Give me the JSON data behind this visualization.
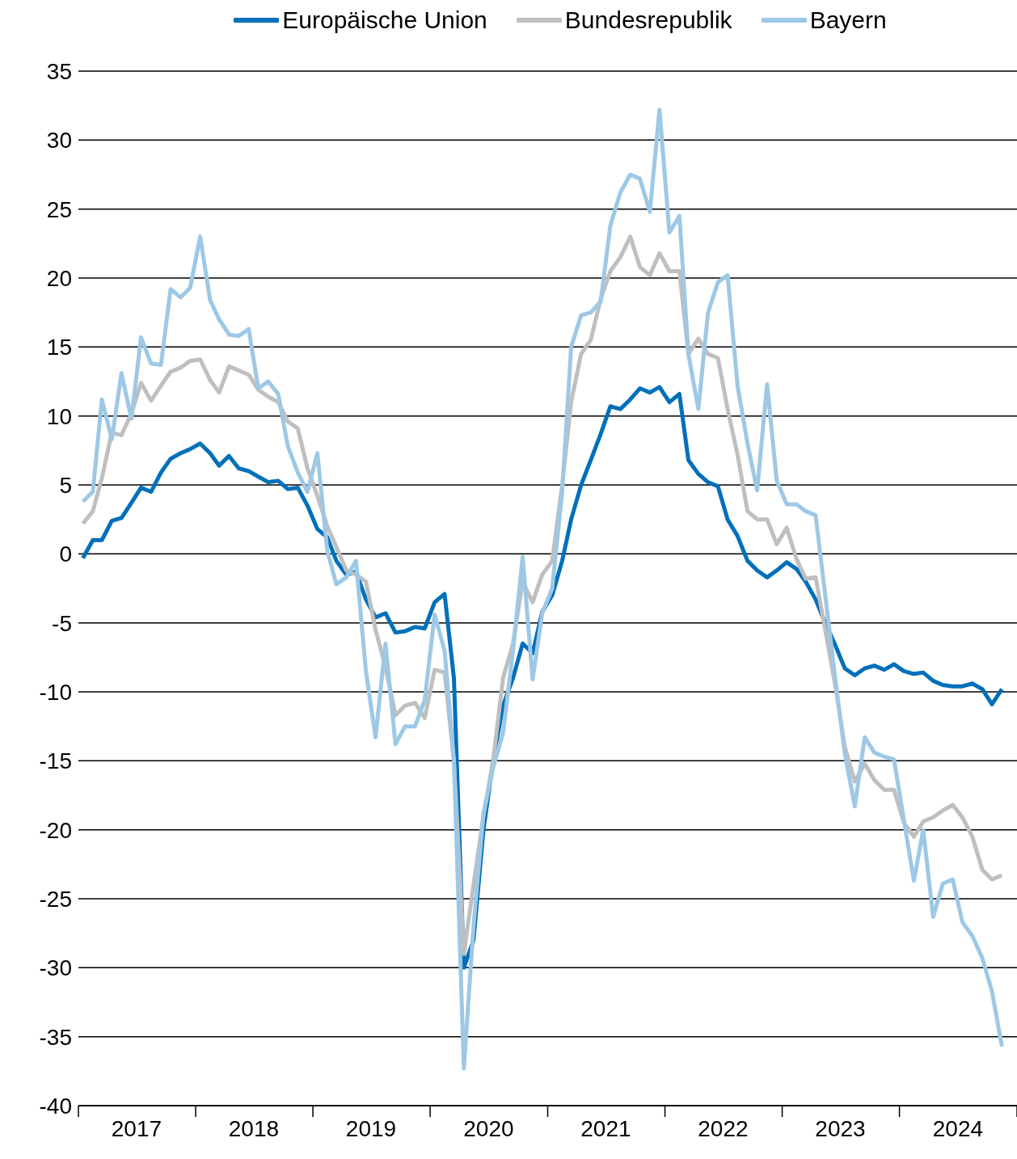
{
  "chart_data": {
    "type": "line",
    "legend": "top",
    "grid": "y",
    "marker": "none",
    "line_style": "solid",
    "x": [
      "2017-01-15",
      "2017-02-15",
      "2017-03-15",
      "2017-04-15",
      "2017-05-15",
      "2017-06-15",
      "2017-07-15",
      "2017-08-15",
      "2017-09-15",
      "2017-10-15",
      "2017-11-15",
      "2017-12-15",
      "2018-01-15",
      "2018-02-15",
      "2018-03-15",
      "2018-04-15",
      "2018-05-15",
      "2018-06-15",
      "2018-07-15",
      "2018-08-15",
      "2018-09-15",
      "2018-10-15",
      "2018-11-15",
      "2018-12-15",
      "2019-01-15",
      "2019-02-15",
      "2019-03-15",
      "2019-04-15",
      "2019-05-15",
      "2019-06-15",
      "2019-07-15",
      "2019-08-15",
      "2019-09-15",
      "2019-10-15",
      "2019-11-15",
      "2019-12-15",
      "2020-01-15",
      "2020-02-15",
      "2020-03-15",
      "2020-04-15",
      "2020-05-15",
      "2020-06-15",
      "2020-07-15",
      "2020-08-15",
      "2020-09-15",
      "2020-10-15",
      "2020-11-15",
      "2020-12-15",
      "2021-01-15",
      "2021-02-15",
      "2021-03-15",
      "2021-04-15",
      "2021-05-15",
      "2021-06-15",
      "2021-07-15",
      "2021-08-15",
      "2021-09-15",
      "2021-10-15",
      "2021-11-15",
      "2021-12-15",
      "2022-01-15",
      "2022-02-15",
      "2022-03-15",
      "2022-04-15",
      "2022-05-15",
      "2022-06-15",
      "2022-07-15",
      "2022-08-15",
      "2022-09-15",
      "2022-10-15",
      "2022-11-15",
      "2022-12-15",
      "2023-01-15",
      "2023-02-15",
      "2023-03-15",
      "2023-04-15",
      "2023-05-15",
      "2023-06-15",
      "2023-07-15",
      "2023-08-15",
      "2023-09-15",
      "2023-10-15",
      "2023-11-15",
      "2023-12-15",
      "2024-01-15",
      "2024-02-15",
      "2024-03-15",
      "2024-04-15",
      "2024-05-15",
      "2024-06-15",
      "2024-07-15",
      "2024-08-15",
      "2024-09-15",
      "2024-10-15",
      "2024-11-15"
    ],
    "xlim": [
      "2017-01-01",
      "2025-01-01"
    ],
    "xticks": [
      {
        "value": "2017-01-01",
        "label": null
      },
      {
        "value": "2017-07-01",
        "label": "2017"
      },
      {
        "value": "2018-01-01",
        "label": null
      },
      {
        "value": "2018-07-01",
        "label": "2018"
      },
      {
        "value": "2019-01-01",
        "label": null
      },
      {
        "value": "2019-07-01",
        "label": "2019"
      },
      {
        "value": "2020-01-01",
        "label": null
      },
      {
        "value": "2020-07-01",
        "label": "2020"
      },
      {
        "value": "2021-01-01",
        "label": null
      },
      {
        "value": "2021-07-01",
        "label": "2021"
      },
      {
        "value": "2022-01-01",
        "label": null
      },
      {
        "value": "2022-07-01",
        "label": "2022"
      },
      {
        "value": "2023-01-01",
        "label": null
      },
      {
        "value": "2023-07-01",
        "label": "2023"
      },
      {
        "value": "2024-01-01",
        "label": null
      },
      {
        "value": "2024-07-01",
        "label": "2024"
      },
      {
        "value": "2025-01-01",
        "label": null
      }
    ],
    "ylim": [
      -40,
      35
    ],
    "yticks": [
      -40,
      -35,
      -30,
      -25,
      -20,
      -15,
      -10,
      -5,
      0,
      5,
      10,
      15,
      20,
      25,
      30,
      35
    ],
    "series": [
      {
        "name": "Europäische Union",
        "color": "#0070ba",
        "values": [
          -0.3,
          1.0,
          1.0,
          2.4,
          2.6,
          3.7,
          4.8,
          4.5,
          5.9,
          6.9,
          7.3,
          7.6,
          8.0,
          7.3,
          6.4,
          7.1,
          6.2,
          6.0,
          5.6,
          5.2,
          5.3,
          4.7,
          4.8,
          3.5,
          1.8,
          1.2,
          -0.5,
          -1.5,
          -1.3,
          -3.3,
          -4.6,
          -4.3,
          -5.7,
          -5.6,
          -5.3,
          -5.4,
          -3.5,
          -2.9,
          -9.0,
          -30,
          -28,
          -20,
          -15,
          -11,
          -9,
          -6.5,
          -7.2,
          -4.2,
          -3,
          -0.5,
          2.5,
          5.0,
          6.8,
          8.7,
          10.7,
          10.5,
          11.2,
          12.0,
          11.7,
          12.1,
          11.0,
          11.6,
          6.8,
          5.8,
          5.2,
          4.9,
          2.5,
          1.3,
          -0.5,
          -1.2,
          -1.7,
          -1.2,
          -0.6,
          -1.1,
          -2.0,
          -3.3,
          -5,
          -6.6,
          -8.3,
          -8.8,
          -8.3,
          -8.1,
          -8.4,
          -8.0,
          -8.5,
          -8.7,
          -8.6,
          -9.2,
          -9.5,
          -9.6,
          -9.6,
          -9.4,
          -9.8,
          -10.9,
          -9.8
        ]
      },
      {
        "name": "Bundesrepublik",
        "color": "#bfbfbf",
        "values": [
          2.2,
          3.1,
          5.5,
          8.8,
          8.6,
          10.2,
          12.4,
          11.1,
          12.2,
          13.2,
          13.5,
          14.0,
          14.1,
          12.6,
          11.7,
          13.6,
          13.3,
          13.0,
          11.9,
          11.4,
          11.0,
          9.6,
          9.1,
          6.2,
          4.2,
          2.0,
          0.5,
          -1.2,
          -1.5,
          -2,
          -5.5,
          -8.2,
          -11.7,
          -11.0,
          -10.8,
          -11.9,
          -8.4,
          -8.6,
          -15,
          -29,
          -24,
          -19,
          -15,
          -9,
          -6.5,
          -2,
          -3.5,
          -1.5,
          -0.5,
          5,
          11,
          14.5,
          15.5,
          18.5,
          20.5,
          21.5,
          23.0,
          20.8,
          20.2,
          21.8,
          20.5,
          20.5,
          14.5,
          15.6,
          14.5,
          14.2,
          10.5,
          7.2,
          3.1,
          2.5,
          2.5,
          0.7,
          1.9,
          -0.4,
          -1.8,
          -1.7,
          -5.5,
          -9.5,
          -14,
          -16.5,
          -15.2,
          -16.4,
          -17.1,
          -17.1,
          -19.5,
          -20.5,
          -19.4,
          -19.1,
          -18.6,
          -18.2,
          -19.1,
          -20.5,
          -22.9,
          -23.6,
          -23.3
        ]
      },
      {
        "name": "Bayern",
        "color": "#9dc8e6",
        "values": [
          3.8,
          4.5,
          11.2,
          8.3,
          13.1,
          9.8,
          15.7,
          13.8,
          13.7,
          19.2,
          18.6,
          19.3,
          23.0,
          18.4,
          17.0,
          15.9,
          15.8,
          16.3,
          12.0,
          12.5,
          11.6,
          7.8,
          5.9,
          4.5,
          7.3,
          0.2,
          -2.2,
          -1.7,
          -0.5,
          -8.5,
          -13.3,
          -6.5,
          -13.8,
          -12.5,
          -12.5,
          -10.6,
          -4.4,
          -7,
          -15,
          -37.3,
          -27,
          -18.8,
          -15.5,
          -13.0,
          -7,
          -0.2,
          -9.1,
          -4.3,
          -2.5,
          4.5,
          15,
          17.3,
          17.5,
          18.3,
          23.8,
          26.2,
          27.5,
          27.2,
          24.8,
          32.2,
          23.3,
          24.5,
          14.5,
          10.5,
          17.5,
          19.7,
          20.2,
          12.2,
          8.0,
          4.6,
          12.3,
          5.3,
          3.6,
          3.6,
          3.1,
          2.8,
          -3,
          -9,
          -14.5,
          -18.3,
          -13.3,
          -14.4,
          -14.7,
          -14.9,
          -19.3,
          -23.7,
          -20,
          -26.3,
          -23.9,
          -23.6,
          -26.7,
          -27.7,
          -29.3,
          -31.7,
          -35.7
        ]
      }
    ]
  }
}
